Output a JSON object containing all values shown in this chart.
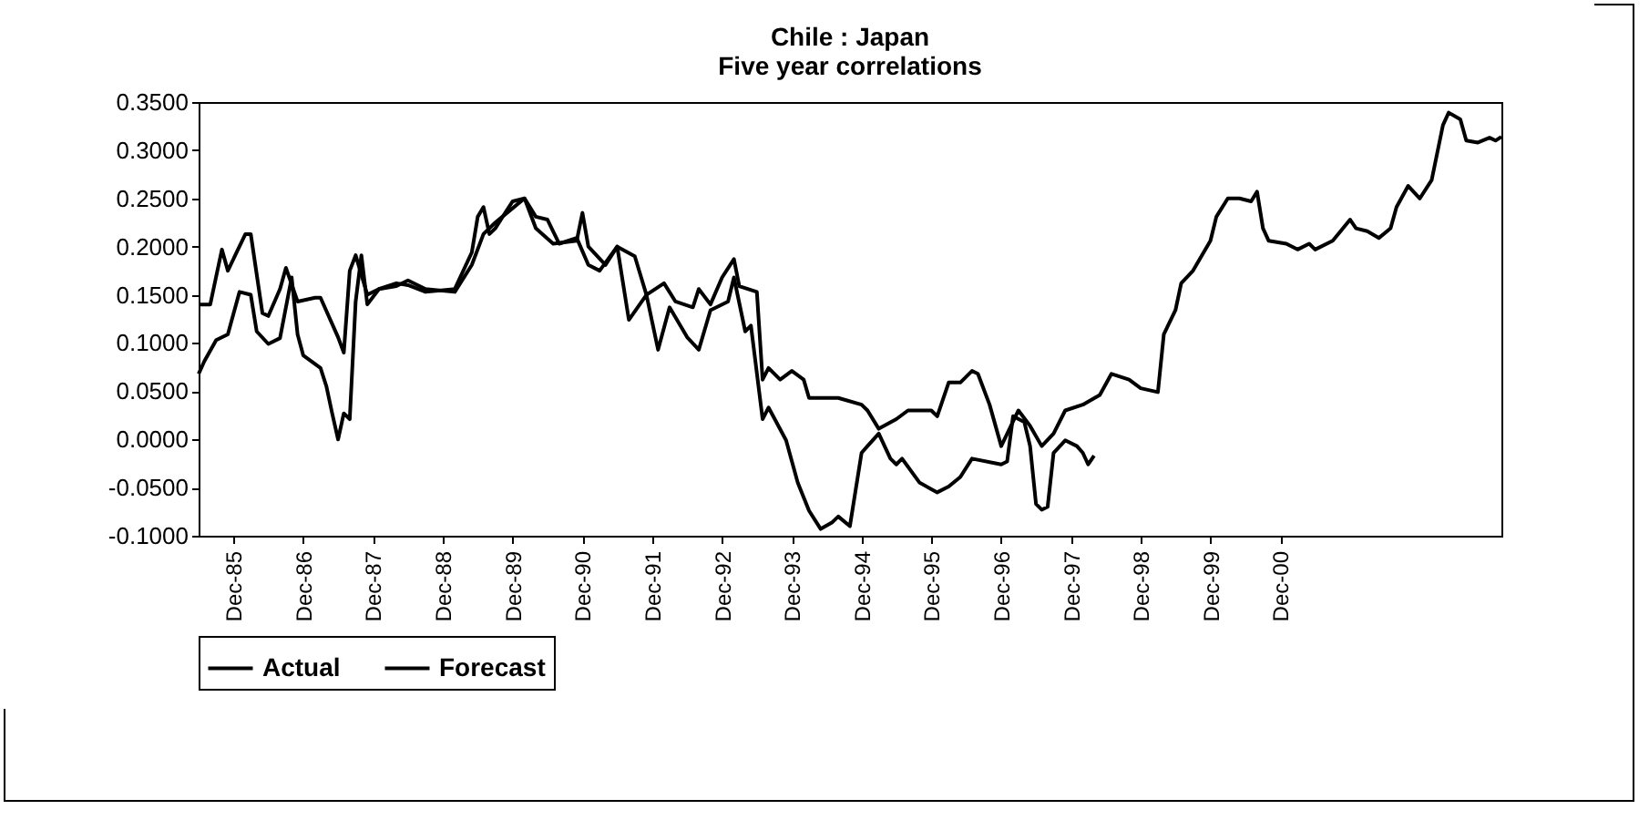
{
  "chart_data": {
    "type": "line",
    "title": "Chile : Japan",
    "subtitle": "Five year correlations",
    "legend": "bottom",
    "line_style": "solid",
    "xlim": [
      "1985-06",
      "2004-02"
    ],
    "xticks": [
      {
        "value": "1985-12",
        "label": "Dec-85"
      },
      {
        "value": "1986-12",
        "label": "Dec-86"
      },
      {
        "value": "1987-12",
        "label": "Dec-87"
      },
      {
        "value": "1988-12",
        "label": "Dec-88"
      },
      {
        "value": "1989-12",
        "label": "Dec-89"
      },
      {
        "value": "1990-12",
        "label": "Dec-90"
      },
      {
        "value": "1991-12",
        "label": "Dec-91"
      },
      {
        "value": "1992-12",
        "label": "Dec-92"
      },
      {
        "value": "1993-12",
        "label": "Dec-93"
      },
      {
        "value": "1994-12",
        "label": "Dec-94"
      },
      {
        "value": "1995-12",
        "label": "Dec-95"
      },
      {
        "value": "1996-12",
        "label": "Dec-96"
      },
      {
        "value": "1997-12",
        "label": "Dec-97"
      },
      {
        "value": "1998-12",
        "label": "Dec-98"
      },
      {
        "value": "1999-12",
        "label": "Dec-99"
      },
      {
        "value": "2000-12",
        "label": "Dec-00"
      }
    ],
    "ylim": [
      -0.1,
      0.35
    ],
    "yticks": [
      {
        "value": -0.1,
        "label": "-0.1000"
      },
      {
        "value": -0.05,
        "label": "-0.0500"
      },
      {
        "value": 0,
        "label": "0.0000"
      },
      {
        "value": 0.05,
        "label": "0.0500"
      },
      {
        "value": 0.1,
        "label": "0.1000"
      },
      {
        "value": 0.15,
        "label": "0.1500"
      },
      {
        "value": 0.2,
        "label": "0.2000"
      },
      {
        "value": 0.25,
        "label": "0.2500"
      },
      {
        "value": 0.3,
        "label": "0.3000"
      },
      {
        "value": 0.35,
        "label": "0.3500"
      }
    ],
    "series": [
      {
        "name": "Actual",
        "color": "#000000",
        "x": [
          "1985-06",
          "1985-07",
          "1985-09",
          "1985-11",
          "1986-01",
          "1986-03",
          "1986-04",
          "1986-06",
          "1986-08",
          "1986-10",
          "1986-11",
          "1986-12",
          "1987-03",
          "1987-04",
          "1987-05",
          "1987-06",
          "1987-07",
          "1987-08",
          "1987-09",
          "1987-10",
          "1987-11",
          "1988-01",
          "1988-04",
          "1988-06",
          "1988-09",
          "1989-02",
          "1989-05",
          "1989-06",
          "1989-07",
          "1989-08",
          "1989-09",
          "1989-11",
          "1989-12",
          "1990-02",
          "1990-04",
          "1990-07",
          "1990-11",
          "1990-12",
          "1991-01",
          "1991-04",
          "1991-06",
          "1991-08",
          "1991-11",
          "1992-01",
          "1992-03",
          "1992-06",
          "1992-08",
          "1992-10",
          "1993-01",
          "1993-02",
          "1993-04",
          "1993-05",
          "1993-07",
          "1993-08",
          "1993-11",
          "1994-01",
          "1994-03",
          "1994-05",
          "1994-07",
          "1994-08",
          "1994-10",
          "1994-12",
          "1995-01",
          "1995-03",
          "1995-05",
          "1995-06",
          "1995-07",
          "1995-10",
          "1996-01",
          "1996-03",
          "1996-05",
          "1996-07",
          "1996-12",
          "1997-01",
          "1997-02",
          "1997-04",
          "1997-05",
          "1997-06",
          "1997-07",
          "1997-08",
          "1997-09",
          "1997-11",
          "1998-01",
          "1998-02",
          "1998-03",
          "1998-04"
        ],
        "values": [
          0.068,
          0.081,
          0.103,
          0.109,
          0.153,
          0.15,
          0.112,
          0.099,
          0.105,
          0.168,
          0.109,
          0.087,
          0.074,
          0.055,
          0.027,
          0.0,
          0.027,
          0.021,
          0.143,
          0.191,
          0.14,
          0.156,
          0.162,
          0.16,
          0.153,
          0.156,
          0.194,
          0.231,
          0.241,
          0.213,
          0.219,
          0.238,
          0.247,
          0.25,
          0.219,
          0.203,
          0.206,
          0.235,
          0.2,
          0.181,
          0.2,
          0.124,
          0.15,
          0.093,
          0.137,
          0.106,
          0.093,
          0.134,
          0.143,
          0.168,
          0.112,
          0.118,
          0.021,
          0.033,
          -0.001,
          -0.045,
          -0.074,
          -0.093,
          -0.086,
          -0.08,
          -0.09,
          -0.014,
          -0.007,
          0.006,
          -0.02,
          -0.026,
          -0.02,
          -0.045,
          -0.055,
          -0.049,
          -0.039,
          -0.02,
          -0.026,
          -0.023,
          0.024,
          0.018,
          -0.007,
          -0.067,
          -0.073,
          -0.07,
          -0.014,
          -0.001,
          -0.007,
          -0.014,
          -0.026,
          -0.017
        ]
      },
      {
        "name": "Forecast",
        "color": "#000000",
        "x": [
          "1985-06",
          "1985-08",
          "1985-09",
          "1985-10",
          "1985-11",
          "1986-02",
          "1986-03",
          "1986-05",
          "1986-06",
          "1986-08",
          "1986-09",
          "1986-11",
          "1987-02",
          "1987-03",
          "1987-06",
          "1987-07",
          "1987-08",
          "1987-09",
          "1987-11",
          "1988-01",
          "1988-04",
          "1988-06",
          "1988-09",
          "1989-02",
          "1989-05",
          "1989-07",
          "1989-09",
          "1989-11",
          "1990-02",
          "1990-04",
          "1990-06",
          "1990-08",
          "1990-11",
          "1991-01",
          "1991-03",
          "1991-06",
          "1991-09",
          "1991-11",
          "1992-02",
          "1992-04",
          "1992-07",
          "1992-08",
          "1992-10",
          "1992-12",
          "1993-02",
          "1993-03",
          "1993-06",
          "1993-07",
          "1993-08",
          "1993-10",
          "1993-12",
          "1994-02",
          "1994-03",
          "1994-08",
          "1994-12",
          "1995-01",
          "1995-03",
          "1995-06",
          "1995-08",
          "1995-12",
          "1996-01",
          "1996-03",
          "1996-05",
          "1996-07",
          "1996-08",
          "1996-10",
          "1996-12",
          "1997-03",
          "1997-05",
          "1997-07",
          "1997-09",
          "1997-11",
          "1998-02",
          "1998-05",
          "1998-07",
          "1998-10",
          "1998-12",
          "1999-03",
          "1999-04",
          "1999-06",
          "1999-07",
          "1999-09",
          "1999-12",
          "2000-01",
          "2000-03",
          "2000-05",
          "2000-07",
          "2000-08",
          "2000-09",
          "2000-10",
          "2001-01",
          "2001-03",
          "2001-05",
          "2001-06",
          "2001-09",
          "2001-12",
          "2002-01",
          "2002-03",
          "2002-05",
          "2002-07",
          "2002-08",
          "2002-10",
          "2002-12",
          "2003-02",
          "2003-04",
          "2003-05",
          "2003-07",
          "2003-08",
          "2003-10",
          "2003-12",
          "2004-01",
          "2004-02"
        ],
        "values": [
          0.14,
          0.14,
          0.169,
          0.197,
          0.175,
          0.213,
          0.213,
          0.131,
          0.128,
          0.156,
          0.178,
          0.143,
          0.147,
          0.147,
          0.106,
          0.09,
          0.175,
          0.191,
          0.15,
          0.156,
          0.159,
          0.165,
          0.156,
          0.153,
          0.181,
          0.213,
          0.225,
          0.235,
          0.25,
          0.231,
          0.228,
          0.203,
          0.209,
          0.181,
          0.175,
          0.2,
          0.19,
          0.15,
          0.162,
          0.143,
          0.137,
          0.156,
          0.14,
          0.168,
          0.187,
          0.159,
          0.153,
          0.062,
          0.074,
          0.062,
          0.071,
          0.062,
          0.043,
          0.043,
          0.036,
          0.03,
          0.011,
          0.021,
          0.03,
          0.03,
          0.024,
          0.059,
          0.059,
          0.071,
          0.068,
          0.036,
          -0.007,
          0.03,
          0.014,
          -0.007,
          0.006,
          0.03,
          0.036,
          0.046,
          0.068,
          0.062,
          0.053,
          0.049,
          0.109,
          0.134,
          0.162,
          0.175,
          0.206,
          0.231,
          0.25,
          0.25,
          0.247,
          0.257,
          0.219,
          0.206,
          0.203,
          0.197,
          0.203,
          0.197,
          0.206,
          0.228,
          0.219,
          0.216,
          0.209,
          0.219,
          0.241,
          0.263,
          0.25,
          0.269,
          0.326,
          0.339,
          0.332,
          0.31,
          0.308,
          0.313,
          0.31,
          0.314
        ]
      }
    ]
  }
}
